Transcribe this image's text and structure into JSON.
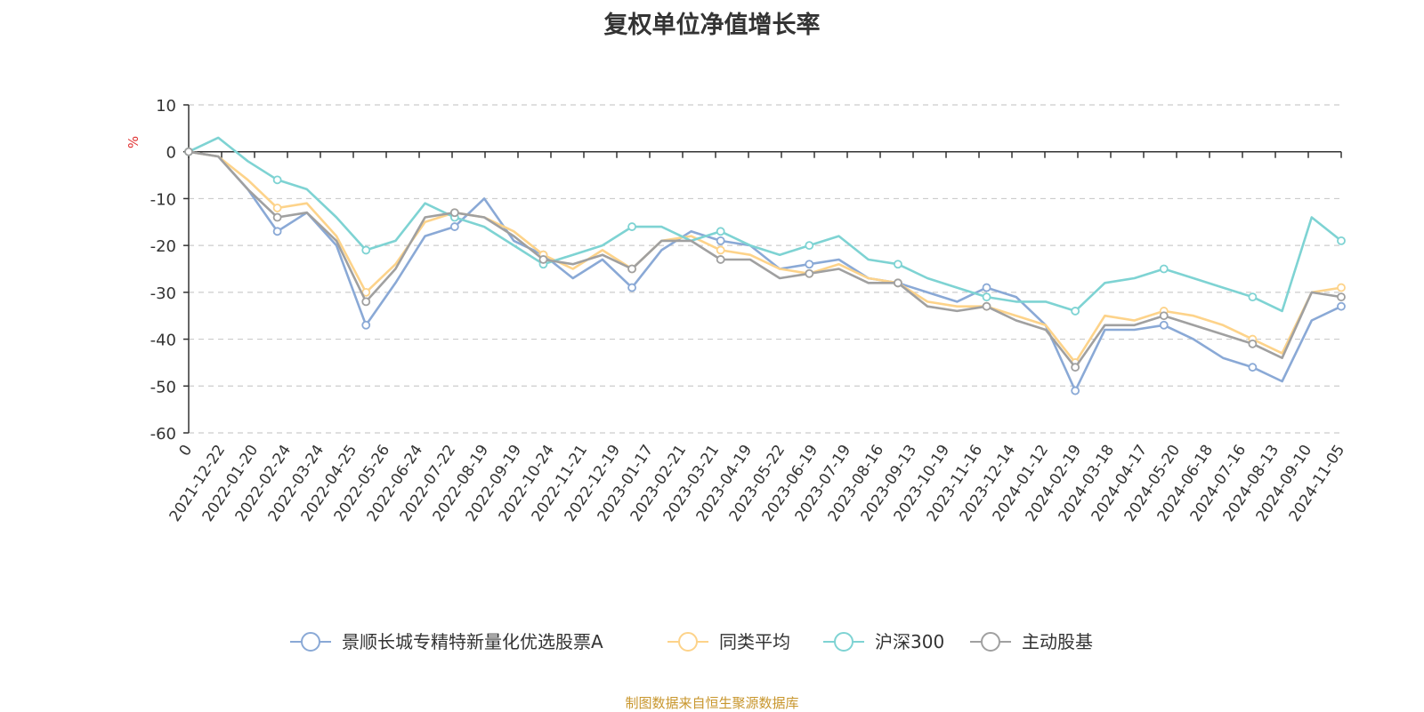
{
  "title": "复权单位净值增长率",
  "source": "制图数据来自恒生聚源数据库",
  "chart_data": {
    "type": "line",
    "title": "复权单位净值增长率",
    "ylabel": "%",
    "ylim": [
      -60,
      10
    ],
    "yticks": [
      10,
      0,
      -10,
      -20,
      -30,
      -40,
      -50,
      -60
    ],
    "grid": true,
    "legend_position": "bottom",
    "x_tick_labels": [
      "2021-12-22",
      "2022-01-20",
      "2022-02-24",
      "2022-03-24",
      "2022-04-25",
      "2022-05-26",
      "2022-06-24",
      "2022-07-22",
      "2022-08-19",
      "2022-09-19",
      "2022-10-24",
      "2022-11-21",
      "2022-12-19",
      "2023-01-17",
      "2023-02-21",
      "2023-03-21",
      "2023-04-19",
      "2023-05-22",
      "2023-06-19",
      "2023-07-19",
      "2023-08-16",
      "2023-09-13",
      "2023-10-19",
      "2023-11-16",
      "2023-12-14",
      "2024-01-12",
      "2024-02-19",
      "2024-03-18",
      "2024-04-17",
      "2024-05-20",
      "2024-06-18",
      "2024-07-16",
      "2024-08-13",
      "2024-09-10",
      "2024-11-05"
    ],
    "series": [
      {
        "name": "景顺长城专精特新量化优选股票A",
        "color": "#8aa9d6",
        "values": [
          0,
          -1,
          -8,
          -17,
          -13,
          -20,
          -37,
          -28,
          -18,
          -16,
          -10,
          -19,
          -22,
          -27,
          -23,
          -29,
          -21,
          -17,
          -19,
          -20,
          -25,
          -24,
          -23,
          -27,
          -28,
          -30,
          -32,
          -29,
          -31,
          -37,
          -51,
          -38,
          -38,
          -37,
          -40,
          -44,
          -46,
          -49,
          -36,
          -33
        ]
      },
      {
        "name": "同类平均",
        "color": "#fdd38a",
        "values": [
          0,
          -1,
          -6,
          -12,
          -11,
          -18,
          -30,
          -24,
          -15,
          -13,
          -14,
          -17,
          -22,
          -25,
          -21,
          -25,
          -19,
          -18,
          -21,
          -22,
          -25,
          -26,
          -24,
          -27,
          -28,
          -32,
          -33,
          -33,
          -35,
          -37,
          -45,
          -35,
          -36,
          -34,
          -35,
          -37,
          -40,
          -43,
          -30,
          -29
        ]
      },
      {
        "name": "沪深300",
        "color": "#7ed3d3",
        "values": [
          0,
          3,
          -2,
          -6,
          -8,
          -14,
          -21,
          -19,
          -11,
          -14,
          -16,
          -20,
          -24,
          -22,
          -20,
          -16,
          -16,
          -19,
          -17,
          -20,
          -22,
          -20,
          -18,
          -23,
          -24,
          -27,
          -29,
          -31,
          -32,
          -32,
          -34,
          -28,
          -27,
          -25,
          -27,
          -29,
          -31,
          -34,
          -14,
          -19
        ]
      },
      {
        "name": "主动股基",
        "color": "#a0a0a0",
        "values": [
          0,
          -1,
          -8,
          -14,
          -13,
          -19,
          -32,
          -25,
          -14,
          -13,
          -14,
          -18,
          -23,
          -24,
          -22,
          -25,
          -19,
          -19,
          -23,
          -23,
          -27,
          -26,
          -25,
          -28,
          -28,
          -33,
          -34,
          -33,
          -36,
          -38,
          -46,
          -37,
          -37,
          -35,
          -37,
          -39,
          -41,
          -44,
          -30,
          -31
        ]
      }
    ]
  }
}
